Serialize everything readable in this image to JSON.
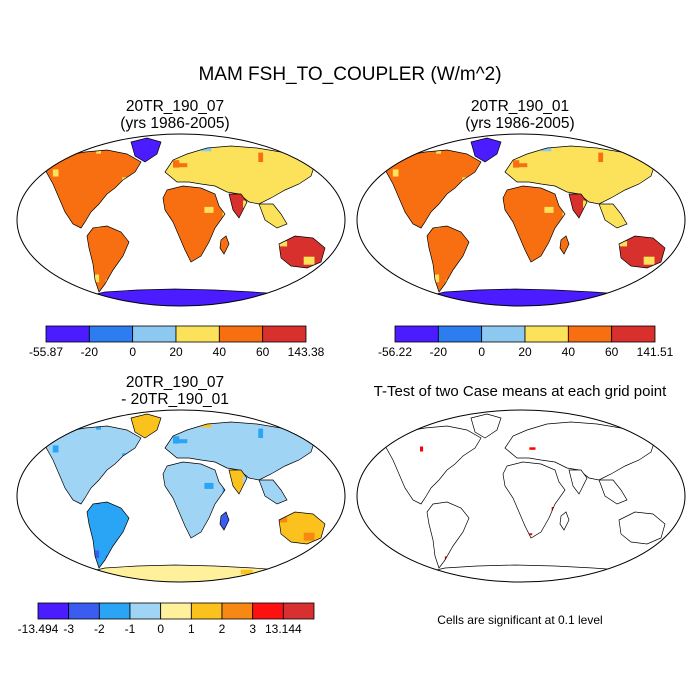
{
  "figure": {
    "title": "MAM FSH_TO_COUPLER (W/m^2)",
    "note": "Cells are significant at 0.1 level"
  },
  "panels": [
    {
      "id": "case1",
      "title_line1": "20TR_190_07",
      "title_line2": "(yrs 1986-2005)",
      "colorbar": {
        "colors": [
          "#4a1cff",
          "#2d7df0",
          "#8cc8f0",
          "#fbe25a",
          "#f86f12",
          "#d8302c"
        ],
        "labels": [
          "-55.87",
          "-20",
          "0",
          "20",
          "40",
          "60",
          "143.38"
        ]
      }
    },
    {
      "id": "case2",
      "title_line1": "20TR_190_01",
      "title_line2": "(yrs 1986-2005)",
      "colorbar": {
        "colors": [
          "#4a1cff",
          "#2d7df0",
          "#8cc8f0",
          "#fbe25a",
          "#f86f12",
          "#d8302c"
        ],
        "labels": [
          "-56.22",
          "-20",
          "0",
          "20",
          "40",
          "60",
          "141.51"
        ]
      }
    },
    {
      "id": "difference",
      "title_line1": "20TR_190_07",
      "title_line2": "- 20TR_190_01",
      "colorbar": {
        "colors": [
          "#4a1cff",
          "#3a5cf0",
          "#2aa4f4",
          "#a0d4f4",
          "#fff09c",
          "#fbc21e",
          "#f88814",
          "#ff1010",
          "#d83030"
        ],
        "labels": [
          "-13.494",
          "-3",
          "-2",
          "-1",
          "0",
          "1",
          "2",
          "3",
          "13.144"
        ]
      }
    },
    {
      "id": "ttest",
      "title_line1": "T-Test of two Case means at each grid point",
      "significance_color": "#ff0000"
    }
  ]
}
